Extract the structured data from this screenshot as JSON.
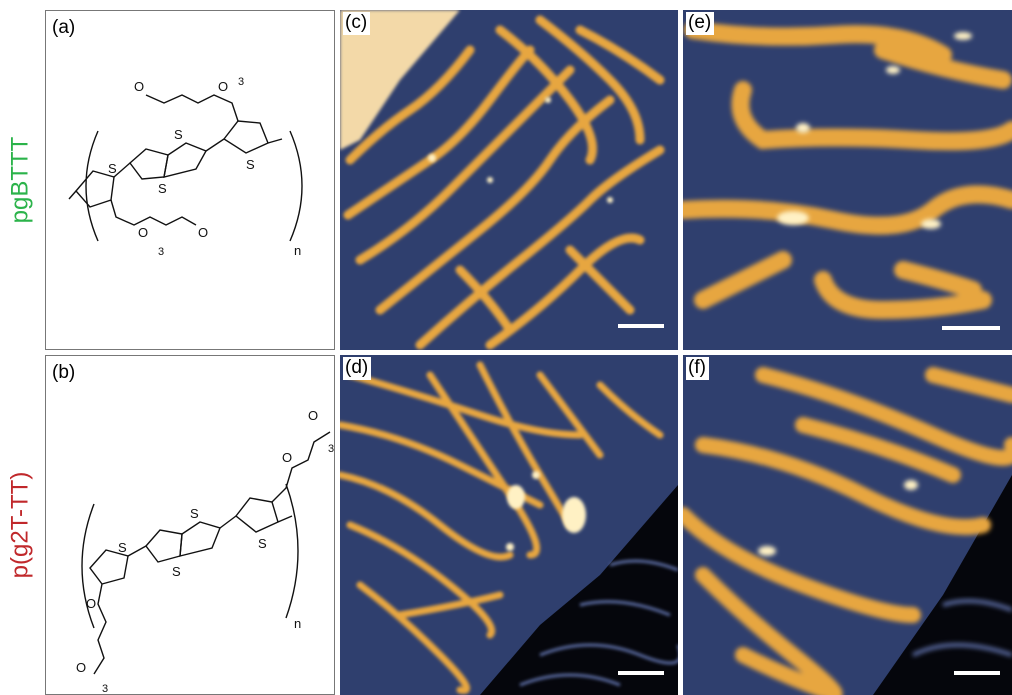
{
  "rows": {
    "top": {
      "label": "pgBTTT",
      "label_color": "#2bb34a"
    },
    "bottom": {
      "label": "p(g2T-TT)",
      "label_color": "#c0282b"
    }
  },
  "panels": {
    "a": {
      "label": "(a)",
      "subscript_n": "n",
      "subscript_3a": "3",
      "subscript_3b": "3",
      "atom_S": "S",
      "atom_O": "O"
    },
    "b": {
      "label": "(b)",
      "subscript_n": "n",
      "subscript_3a": "3",
      "subscript_3b": "3",
      "atom_S": "S",
      "atom_O": "O"
    },
    "c": {
      "label": "(c)"
    },
    "d": {
      "label": "(d)"
    },
    "e": {
      "label": "(e)"
    },
    "f": {
      "label": "(f)"
    }
  },
  "colors": {
    "substrate": "#2f3f6e",
    "polymer": "#e7a640",
    "polymer_highlight": "#fff1c4",
    "dark_region": "#05060c",
    "bare_chain": "#5a6ba0",
    "scale_bar": "#ffffff"
  }
}
